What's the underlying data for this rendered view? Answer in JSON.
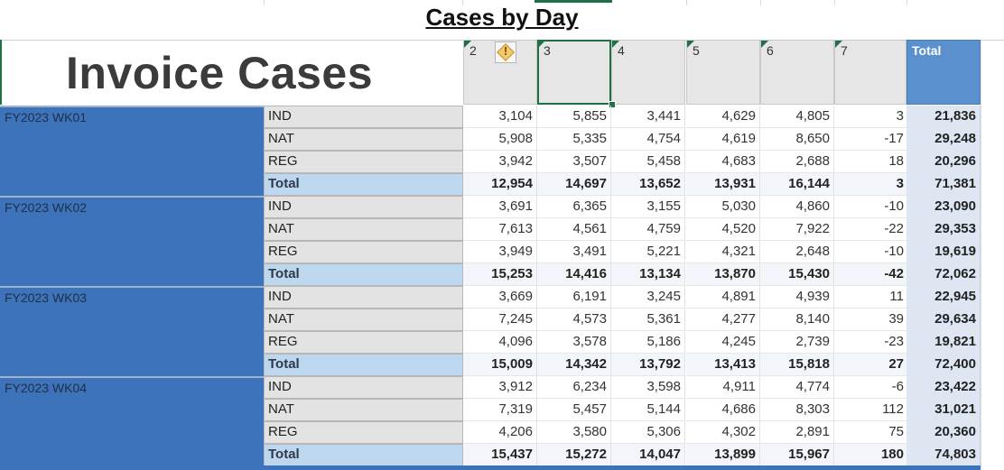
{
  "header": {
    "cases_by_day_title": "Cases by Day",
    "invoice_title": "Invoice Cases",
    "day_columns": [
      "2",
      "3",
      "4",
      "5",
      "6",
      "7"
    ],
    "total_label": "Total",
    "warning_icon": "warning-icon"
  },
  "colors": {
    "week_fill": "#3d73bb",
    "total_header": "#5b8fcd",
    "region_total_fill": "#bdd7ee",
    "selection": "#1e7145"
  },
  "weeks": [
    {
      "label": "FY2023 WK01",
      "rows": [
        {
          "region": "IND",
          "values": [
            "3,104",
            "5,855",
            "3,441",
            "4,629",
            "4,805",
            "3"
          ],
          "total": "21,836"
        },
        {
          "region": "NAT",
          "values": [
            "5,908",
            "5,335",
            "4,754",
            "4,619",
            "8,650",
            "-17"
          ],
          "total": "29,248"
        },
        {
          "region": "REG",
          "values": [
            "3,942",
            "3,507",
            "5,458",
            "4,683",
            "2,688",
            "18"
          ],
          "total": "20,296"
        },
        {
          "region": "Total",
          "values": [
            "12,954",
            "14,697",
            "13,652",
            "13,931",
            "16,144",
            "3"
          ],
          "total": "71,381"
        }
      ]
    },
    {
      "label": "FY2023 WK02",
      "rows": [
        {
          "region": "IND",
          "values": [
            "3,691",
            "6,365",
            "3,155",
            "5,030",
            "4,860",
            "-10"
          ],
          "total": "23,090"
        },
        {
          "region": "NAT",
          "values": [
            "7,613",
            "4,561",
            "4,759",
            "4,520",
            "7,922",
            "-22"
          ],
          "total": "29,353"
        },
        {
          "region": "REG",
          "values": [
            "3,949",
            "3,491",
            "5,221",
            "4,321",
            "2,648",
            "-10"
          ],
          "total": "19,619"
        },
        {
          "region": "Total",
          "values": [
            "15,253",
            "14,416",
            "13,134",
            "13,870",
            "15,430",
            "-42"
          ],
          "total": "72,062"
        }
      ]
    },
    {
      "label": "FY2023 WK03",
      "rows": [
        {
          "region": "IND",
          "values": [
            "3,669",
            "6,191",
            "3,245",
            "4,891",
            "4,939",
            "11"
          ],
          "total": "22,945"
        },
        {
          "region": "NAT",
          "values": [
            "7,245",
            "4,573",
            "5,361",
            "4,277",
            "8,140",
            "39"
          ],
          "total": "29,634"
        },
        {
          "region": "REG",
          "values": [
            "4,096",
            "3,578",
            "5,186",
            "4,245",
            "2,739",
            "-23"
          ],
          "total": "19,821"
        },
        {
          "region": "Total",
          "values": [
            "15,009",
            "14,342",
            "13,792",
            "13,413",
            "15,818",
            "27"
          ],
          "total": "72,400"
        }
      ]
    },
    {
      "label": "FY2023 WK04",
      "rows": [
        {
          "region": "IND",
          "values": [
            "3,912",
            "6,234",
            "3,598",
            "4,911",
            "4,774",
            "-6"
          ],
          "total": "23,422"
        },
        {
          "region": "NAT",
          "values": [
            "7,319",
            "5,457",
            "5,144",
            "4,686",
            "8,303",
            "112"
          ],
          "total": "31,021"
        },
        {
          "region": "REG",
          "values": [
            "4,206",
            "3,580",
            "5,306",
            "4,302",
            "2,891",
            "75"
          ],
          "total": "20,360"
        },
        {
          "region": "Total",
          "values": [
            "15,437",
            "15,272",
            "14,047",
            "13,899",
            "15,967",
            "180"
          ],
          "total": "74,803"
        }
      ]
    }
  ]
}
